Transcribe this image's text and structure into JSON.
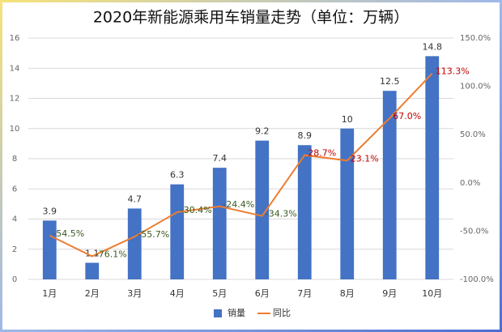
{
  "chart_data": {
    "type": "bar",
    "title": "2020年新能源乘用车销量走势（单位：万辆）",
    "categories": [
      "1月",
      "2月",
      "3月",
      "4月",
      "5月",
      "6月",
      "7月",
      "8月",
      "9月",
      "10月"
    ],
    "series": [
      {
        "name": "销量",
        "type": "bar",
        "color": "#4472c4",
        "values": [
          3.9,
          1.1,
          4.7,
          6.3,
          7.4,
          9.2,
          8.9,
          10,
          12.5,
          14.8
        ]
      },
      {
        "name": "同比",
        "type": "line",
        "axis": "y2",
        "color": "#ed7d31",
        "values": [
          -54.5,
          -76.1,
          -55.7,
          -30.4,
          -24.4,
          -34.3,
          28.7,
          23.1,
          67.0,
          113.3
        ],
        "value_labels": [
          "-54.5%",
          "-76.1%",
          "-55.7%",
          "-30.4%",
          "-24.4%",
          "-34.3%",
          "28.7%",
          "23.1%",
          "67.0%",
          "113.3%"
        ]
      }
    ],
    "ylim": [
      0,
      16
    ],
    "yticks": [
      0,
      2,
      4,
      6,
      8,
      10,
      12,
      14,
      16
    ],
    "y2lim": [
      -100,
      150
    ],
    "y2ticks": [
      {
        "value": -100,
        "label": "-100.0%"
      },
      {
        "value": -50,
        "label": "-50.0%"
      },
      {
        "value": 0,
        "label": "0.0%"
      },
      {
        "value": 50,
        "label": "50.0%"
      },
      {
        "value": 100,
        "label": "100.0%"
      },
      {
        "value": 150,
        "label": "150.0%"
      }
    ],
    "grid": true,
    "legend": "bottom"
  }
}
